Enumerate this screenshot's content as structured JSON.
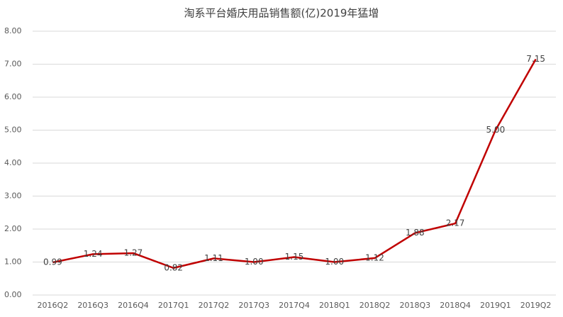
{
  "chart_data": {
    "type": "line",
    "title": "淘系平台婚庆用品销售额(亿)2019年猛增",
    "categories": [
      "2016Q2",
      "2016Q3",
      "2016Q4",
      "2017Q1",
      "2017Q2",
      "2017Q3",
      "2017Q4",
      "2018Q1",
      "2018Q2",
      "2018Q3",
      "2018Q4",
      "2019Q1",
      "2019Q2"
    ],
    "series": [
      {
        "color": "#c00000",
        "values": [
          0.99,
          1.24,
          1.27,
          0.82,
          1.11,
          1.0,
          1.15,
          1.0,
          1.12,
          1.88,
          2.17,
          5.0,
          7.15
        ],
        "value_labels": [
          "0.99",
          "1.24",
          "1.27",
          "0.82",
          "1.11",
          "1.00",
          "1.15",
          "1.00",
          "1.12",
          "1.88",
          "2.17",
          "5.00",
          "7.15"
        ]
      }
    ],
    "ylim": [
      0,
      8
    ],
    "yticks": [
      {
        "value": 0,
        "label": "0.00"
      },
      {
        "value": 1,
        "label": "1.00"
      },
      {
        "value": 2,
        "label": "2.00"
      },
      {
        "value": 3,
        "label": "3.00"
      },
      {
        "value": 4,
        "label": "4.00"
      },
      {
        "value": 5,
        "label": "5.00"
      },
      {
        "value": 6,
        "label": "6.00"
      },
      {
        "value": 7,
        "label": "7.00"
      },
      {
        "value": 8,
        "label": "8.00"
      }
    ],
    "grid": true
  }
}
